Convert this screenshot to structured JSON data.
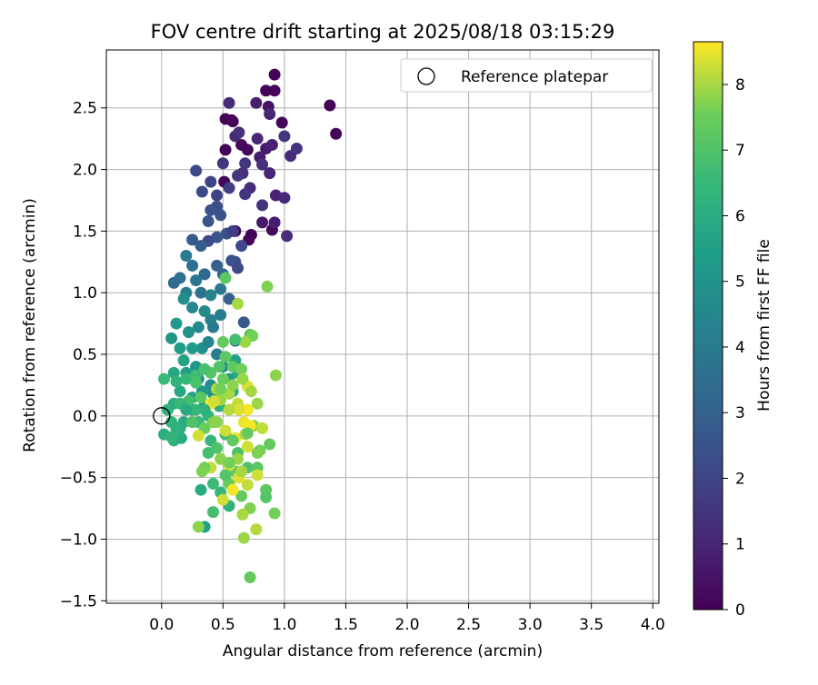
{
  "chart_data": {
    "type": "scatter",
    "title": "FOV centre drift starting at 2025/08/18 03:15:29",
    "xlabel": "Angular distance from reference (arcmin)",
    "ylabel": "Rotation from reference (arcmin)",
    "xlim": [
      -0.45,
      4.05
    ],
    "ylim": [
      -1.52,
      2.97
    ],
    "x_ticks": [
      0.0,
      0.5,
      1.0,
      1.5,
      2.0,
      2.5,
      3.0,
      3.5,
      4.0
    ],
    "x_tick_labels": [
      "0.0",
      "0.5",
      "1.0",
      "1.5",
      "2.0",
      "2.5",
      "3.0",
      "3.5",
      "4.0"
    ],
    "y_ticks": [
      -1.5,
      -1.0,
      -0.5,
      0.0,
      0.5,
      1.0,
      1.5,
      2.0,
      2.5
    ],
    "y_tick_labels": [
      "−1.5",
      "−1.0",
      "−0.5",
      "0.0",
      "0.5",
      "1.0",
      "1.5",
      "2.0",
      "2.5"
    ],
    "grid": true,
    "legend": {
      "placement": "upper-right",
      "entries": [
        "Reference platepar"
      ]
    },
    "reference_point": {
      "name": "Reference platepar",
      "x": 0.0,
      "y": 0.0
    },
    "colorbar": {
      "label": "Hours from first FF file",
      "colormap": "viridis",
      "range": [
        0,
        8.65
      ],
      "ticks": [
        0,
        1,
        2,
        3,
        4,
        5,
        6,
        7,
        8
      ],
      "tick_labels": [
        "0",
        "1",
        "2",
        "3",
        "4",
        "5",
        "6",
        "7",
        "8"
      ]
    },
    "point_note": "each point: x = angular distance (arcmin), y = rotation (arcmin), c = hours from first FF file",
    "points": [
      [
        0.92,
        2.77,
        0.1
      ],
      [
        0.85,
        2.64,
        0.1
      ],
      [
        0.92,
        2.64,
        0.1
      ],
      [
        0.52,
        2.41,
        0.1
      ],
      [
        0.57,
        2.4,
        0.1
      ],
      [
        0.58,
        2.39,
        0.1
      ],
      [
        0.98,
        2.38,
        0.1
      ],
      [
        1.37,
        2.52,
        0.1
      ],
      [
        1.42,
        2.29,
        0.1
      ],
      [
        0.65,
        2.2,
        0.2
      ],
      [
        0.7,
        2.16,
        0.2
      ],
      [
        0.52,
        2.16,
        0.1
      ],
      [
        0.51,
        1.9,
        0.1
      ],
      [
        0.73,
        1.47,
        0.1
      ],
      [
        0.6,
        1.5,
        0.1
      ],
      [
        0.71,
        1.43,
        0.2
      ],
      [
        0.9,
        1.51,
        0.2
      ],
      [
        0.87,
        2.51,
        0.5
      ],
      [
        0.77,
        2.54,
        0.8
      ],
      [
        0.88,
        2.45,
        1.0
      ],
      [
        0.85,
        2.17,
        0.7
      ],
      [
        0.8,
        2.1,
        0.8
      ],
      [
        0.55,
        2.54,
        1.2
      ],
      [
        0.6,
        2.27,
        1.1
      ],
      [
        0.63,
        2.3,
        1.3
      ],
      [
        0.78,
        2.25,
        1.1
      ],
      [
        0.9,
        2.2,
        0.9
      ],
      [
        1.0,
        2.27,
        1.5
      ],
      [
        1.05,
        2.11,
        1.2
      ],
      [
        1.1,
        2.17,
        1.4
      ],
      [
        0.82,
        2.04,
        1.3
      ],
      [
        0.68,
        2.05,
        1.5
      ],
      [
        0.66,
        1.97,
        1.3
      ],
      [
        0.62,
        1.95,
        1.6
      ],
      [
        0.5,
        2.05,
        1.5
      ],
      [
        0.88,
        1.97,
        1.0
      ],
      [
        0.93,
        1.79,
        0.9
      ],
      [
        1.0,
        1.77,
        1.1
      ],
      [
        0.92,
        1.57,
        0.8
      ],
      [
        0.82,
        1.57,
        0.7
      ],
      [
        1.02,
        1.46,
        1.2
      ],
      [
        0.82,
        1.71,
        1.4
      ],
      [
        0.72,
        1.85,
        1.2
      ],
      [
        0.68,
        1.8,
        1.6
      ],
      [
        0.55,
        1.85,
        1.8
      ],
      [
        0.45,
        1.79,
        1.9
      ],
      [
        0.4,
        1.9,
        2.0
      ],
      [
        0.28,
        1.99,
        2.1
      ],
      [
        0.33,
        1.82,
        2.2
      ],
      [
        0.45,
        1.7,
        2.3
      ],
      [
        0.4,
        1.67,
        2.4
      ],
      [
        0.48,
        1.63,
        2.5
      ],
      [
        0.38,
        1.58,
        2.6
      ],
      [
        0.53,
        1.48,
        2.4
      ],
      [
        0.58,
        1.5,
        1.8
      ],
      [
        0.65,
        1.38,
        2.1
      ],
      [
        0.6,
        1.25,
        2.3
      ],
      [
        0.45,
        1.45,
        2.6
      ],
      [
        0.38,
        1.42,
        2.2
      ],
      [
        0.25,
        1.43,
        2.8
      ],
      [
        0.32,
        1.38,
        2.9
      ],
      [
        0.45,
        1.22,
        3.0
      ],
      [
        0.57,
        1.26,
        2.5
      ],
      [
        0.62,
        1.2,
        2.2
      ],
      [
        0.5,
        1.15,
        3.2
      ],
      [
        0.35,
        1.15,
        3.3
      ],
      [
        0.25,
        1.22,
        3.5
      ],
      [
        0.2,
        1.3,
        4.0
      ],
      [
        0.28,
        1.1,
        3.8
      ],
      [
        0.15,
        1.12,
        3.6
      ],
      [
        0.2,
        1.0,
        4.2
      ],
      [
        0.1,
        1.08,
        3.4
      ],
      [
        0.32,
        1.0,
        3.7
      ],
      [
        0.4,
        0.98,
        4.4
      ],
      [
        0.48,
        1.03,
        3.9
      ],
      [
        0.18,
        0.95,
        4.8
      ],
      [
        0.25,
        0.88,
        4.5
      ],
      [
        0.35,
        0.85,
        4.7
      ],
      [
        0.4,
        0.78,
        4.3
      ],
      [
        0.48,
        0.82,
        4.1
      ],
      [
        0.55,
        0.95,
        3.0
      ],
      [
        0.67,
        0.76,
        2.7
      ],
      [
        0.6,
        0.61,
        3.3
      ],
      [
        0.42,
        0.72,
        4.0
      ],
      [
        0.3,
        0.72,
        4.6
      ],
      [
        0.22,
        0.68,
        5.0
      ],
      [
        0.12,
        0.75,
        5.2
      ],
      [
        0.08,
        0.63,
        5.1
      ],
      [
        0.15,
        0.55,
        5.4
      ],
      [
        0.18,
        0.45,
        5.6
      ],
      [
        0.25,
        0.55,
        5.3
      ],
      [
        0.33,
        0.55,
        4.9
      ],
      [
        0.38,
        0.6,
        4.4
      ],
      [
        0.45,
        0.5,
        4.2
      ],
      [
        0.5,
        0.4,
        4.6
      ],
      [
        0.28,
        0.4,
        5.1
      ],
      [
        0.2,
        0.35,
        5.5
      ],
      [
        0.1,
        0.35,
        5.8
      ],
      [
        0.3,
        0.3,
        5.0
      ],
      [
        0.4,
        0.25,
        4.8
      ],
      [
        0.33,
        0.2,
        5.2
      ],
      [
        0.25,
        0.15,
        5.7
      ],
      [
        0.15,
        0.2,
        5.9
      ],
      [
        0.1,
        0.1,
        6.0
      ],
      [
        0.05,
        0.05,
        6.2
      ],
      [
        0.08,
        -0.05,
        6.3
      ],
      [
        0.15,
        -0.1,
        6.2
      ],
      [
        0.02,
        -0.15,
        6.1
      ],
      [
        0.1,
        -0.2,
        6.3
      ],
      [
        0.18,
        -0.05,
        6.0
      ],
      [
        0.25,
        0.05,
        5.6
      ],
      [
        0.35,
        0.08,
        5.4
      ],
      [
        0.42,
        0.18,
        5.2
      ],
      [
        0.55,
        0.3,
        5.3
      ],
      [
        0.6,
        0.45,
        5.6
      ],
      [
        0.62,
        0.35,
        5.8
      ],
      [
        0.58,
        0.2,
        5.9
      ],
      [
        0.47,
        0.08,
        6.1
      ],
      [
        0.38,
        0.0,
        6.4
      ],
      [
        0.3,
        -0.05,
        6.6
      ],
      [
        0.4,
        -0.2,
        6.5
      ],
      [
        0.52,
        -0.15,
        6.7
      ],
      [
        0.62,
        -0.3,
        6.9
      ],
      [
        0.7,
        -0.42,
        7.0
      ],
      [
        0.78,
        -0.42,
        7.2
      ],
      [
        0.6,
        -0.45,
        7.3
      ],
      [
        0.55,
        -0.55,
        7.5
      ],
      [
        0.65,
        -0.65,
        7.4
      ],
      [
        0.48,
        -0.62,
        6.5
      ],
      [
        0.55,
        -0.73,
        6.2
      ],
      [
        0.42,
        -0.78,
        6.8
      ],
      [
        0.32,
        -0.6,
        6.0
      ],
      [
        0.35,
        -0.9,
        5.5
      ],
      [
        0.3,
        -0.9,
        7.8
      ],
      [
        0.72,
        -0.75,
        7.7
      ],
      [
        0.66,
        -0.8,
        8.0
      ],
      [
        0.67,
        -0.99,
        7.9
      ],
      [
        0.77,
        -0.92,
        8.1
      ],
      [
        0.7,
        -0.56,
        8.2
      ],
      [
        0.63,
        -0.5,
        8.4
      ],
      [
        0.78,
        -0.48,
        8.3
      ],
      [
        0.85,
        -0.66,
        7.1
      ],
      [
        0.92,
        -0.79,
        7.6
      ],
      [
        0.88,
        -0.23,
        7.4
      ],
      [
        0.8,
        -0.28,
        7.6
      ],
      [
        0.75,
        -0.08,
        7.8
      ],
      [
        0.67,
        -0.05,
        8.5
      ],
      [
        0.7,
        0.05,
        8.6
      ],
      [
        0.62,
        0.1,
        8.2
      ],
      [
        0.55,
        0.18,
        8.0
      ],
      [
        0.48,
        0.13,
        7.9
      ],
      [
        0.42,
        -0.05,
        7.7
      ],
      [
        0.45,
        0.22,
        8.1
      ],
      [
        0.5,
        0.3,
        7.5
      ],
      [
        0.58,
        0.4,
        7.3
      ],
      [
        0.65,
        0.38,
        7.6
      ],
      [
        0.7,
        0.24,
        8.4
      ],
      [
        0.73,
        0.2,
        8.0
      ],
      [
        0.72,
        0.66,
        7.2
      ],
      [
        0.74,
        0.65,
        7.6
      ],
      [
        0.68,
        0.6,
        7.9
      ],
      [
        0.6,
        0.62,
        6.8
      ],
      [
        0.5,
        0.6,
        7.4
      ],
      [
        0.52,
        0.48,
        7.2
      ],
      [
        0.47,
        0.4,
        7.0
      ],
      [
        0.4,
        0.35,
        7.1
      ],
      [
        0.35,
        0.38,
        6.9
      ],
      [
        0.28,
        0.33,
        6.7
      ],
      [
        0.2,
        0.3,
        6.5
      ],
      [
        0.02,
        0.3,
        6.6
      ],
      [
        0.12,
        0.28,
        6.4
      ],
      [
        0.28,
        0.27,
        6.9
      ],
      [
        0.32,
        0.15,
        7.2
      ],
      [
        0.22,
        0.12,
        6.8
      ],
      [
        0.15,
        0.1,
        6.5
      ],
      [
        0.25,
        -0.05,
        7.0
      ],
      [
        0.35,
        -0.1,
        7.5
      ],
      [
        0.45,
        -0.05,
        7.8
      ],
      [
        0.52,
        -0.12,
        8.3
      ],
      [
        0.6,
        -0.18,
        8.5
      ],
      [
        0.68,
        -0.15,
        8.1
      ],
      [
        0.72,
        -0.08,
        8.6
      ],
      [
        0.78,
        0.1,
        7.9
      ],
      [
        0.82,
        -0.1,
        8.2
      ],
      [
        0.78,
        -0.3,
        7.7
      ],
      [
        0.7,
        -0.25,
        8.3
      ],
      [
        0.62,
        -0.35,
        7.9
      ],
      [
        0.55,
        -0.4,
        8.4
      ],
      [
        0.48,
        -0.35,
        7.8
      ],
      [
        0.4,
        -0.42,
        8.2
      ],
      [
        0.35,
        -0.42,
        7.6
      ],
      [
        0.3,
        -0.16,
        8.3
      ],
      [
        0.62,
        0.91,
        8.0
      ],
      [
        0.86,
        1.05,
        7.7
      ],
      [
        0.52,
        1.12,
        7.2
      ],
      [
        0.93,
        0.33,
        7.8
      ],
      [
        0.66,
        0.3,
        7.9
      ],
      [
        0.7,
        -0.14,
        7.4
      ],
      [
        0.58,
        -0.2,
        7.3
      ],
      [
        0.45,
        -0.26,
        7.0
      ],
      [
        0.38,
        -0.3,
        6.8
      ],
      [
        0.33,
        -0.45,
        7.7
      ],
      [
        0.42,
        -0.55,
        6.6
      ],
      [
        0.52,
        -0.48,
        7.1
      ],
      [
        0.58,
        -0.6,
        8.6
      ],
      [
        0.5,
        -0.68,
        8.3
      ],
      [
        0.72,
        -1.31,
        7.4
      ],
      [
        0.85,
        -0.6,
        7.2
      ],
      [
        0.65,
        -0.45,
        8.0
      ],
      [
        0.55,
        -0.38,
        7.6
      ],
      [
        0.63,
        0.05,
        8.4
      ],
      [
        0.55,
        0.05,
        8.1
      ],
      [
        0.4,
        0.1,
        8.6
      ],
      [
        0.43,
        0.12,
        8.3
      ],
      [
        0.48,
        0.22,
        7.6
      ],
      [
        0.58,
        0.25,
        7.8
      ],
      [
        0.35,
        0.05,
        6.2
      ],
      [
        0.28,
        0.05,
        6.5
      ],
      [
        0.2,
        0.05,
        5.9
      ],
      [
        0.16,
        -0.18,
        6.0
      ],
      [
        0.12,
        -0.1,
        6.2
      ],
      [
        0.08,
        -0.17,
        6.4
      ]
    ]
  }
}
